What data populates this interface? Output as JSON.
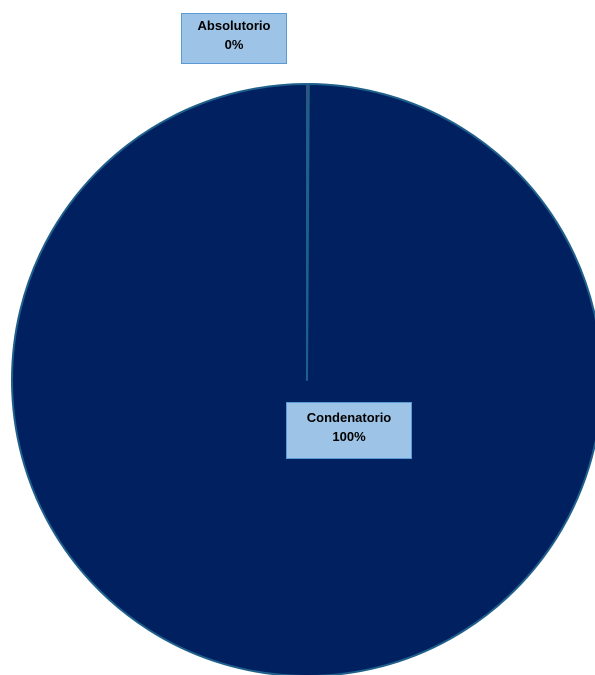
{
  "chart_data": {
    "type": "pie",
    "slices": [
      {
        "name": "Condenatorio",
        "value": 100,
        "label": "100%",
        "color": "#002060"
      },
      {
        "name": "Absolutorio",
        "value": 0,
        "label": "0%",
        "color": "#c00000"
      }
    ],
    "title": "",
    "legend": "none",
    "border_color": "#1f5f8b",
    "label_background": "#9dc3e6",
    "label_border": "#5b9bd5"
  }
}
